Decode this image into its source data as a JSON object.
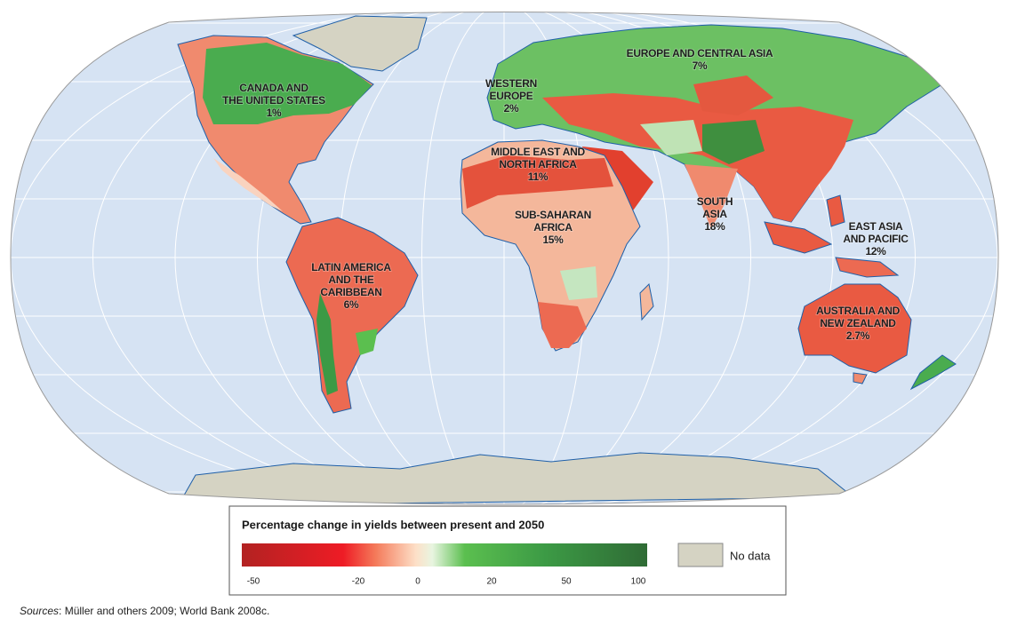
{
  "map": {
    "regions": [
      {
        "lines": [
          "CANADA AND",
          "THE UNITED STATES"
        ],
        "value": "1%"
      },
      {
        "lines": [
          "WESTERN",
          "EUROPE"
        ],
        "value": "2%"
      },
      {
        "lines": [
          "EUROPE AND CENTRAL ASIA"
        ],
        "value": "7%"
      },
      {
        "lines": [
          "MIDDLE EAST AND",
          "NORTH AFRICA"
        ],
        "value": "11%"
      },
      {
        "lines": [
          "SUB-SAHARAN",
          "AFRICA"
        ],
        "value": "15%"
      },
      {
        "lines": [
          "SOUTH",
          "ASIA"
        ],
        "value": "18%"
      },
      {
        "lines": [
          "EAST ASIA",
          "AND PACIFIC"
        ],
        "value": "12%"
      },
      {
        "lines": [
          "LATIN AMERICA",
          "AND THE",
          "CARIBBEAN"
        ],
        "value": "6%"
      },
      {
        "lines": [
          "AUSTRALIA AND",
          "NEW ZEALAND"
        ],
        "value": "2.7%"
      }
    ],
    "legend": {
      "title": "Percentage change in yields between present and 2050",
      "ticks": [
        -50,
        -20,
        0,
        20,
        50,
        100
      ],
      "no_data": "No data"
    },
    "source": {
      "label": "Sources",
      "text": ": Müller and others 2009; World Bank 2008c."
    }
  }
}
